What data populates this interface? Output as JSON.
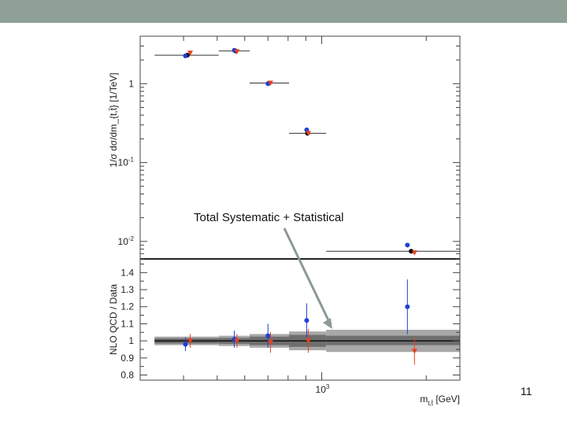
{
  "slide": {
    "page_number": "11",
    "annotation": "Total Systematic + Statistical",
    "topbar_color": "#8fa096"
  },
  "chart_data": [
    {
      "type": "scatter",
      "panel": "upper",
      "ylabel": "1/σ dσ/dm_{t,t̄} [1/TeV]",
      "yscale": "log",
      "ylim": [
        0.006,
        4
      ],
      "xscale": "log",
      "xlim": [
        300,
        2500
      ],
      "y_ticks": [
        {
          "value": 1,
          "label": "1"
        },
        {
          "value": 0.1,
          "label": "10^-1"
        },
        {
          "value": 0.01,
          "label": "10^-2"
        }
      ],
      "bins": [
        [
          330,
          505
        ],
        [
          505,
          620
        ],
        [
          620,
          805
        ],
        [
          805,
          1030
        ],
        [
          1030,
          2500
        ]
      ],
      "series": [
        {
          "color": "#000000",
          "marker": "circle",
          "x": [
            410,
            565,
            705,
            910,
            1810
          ],
          "y": [
            2.3,
            2.6,
            1.02,
            0.235,
            0.0075
          ]
        },
        {
          "color": "#1f3fd6",
          "marker": "circle",
          "x": [
            405,
            560,
            700,
            905,
            1765
          ],
          "y": [
            2.25,
            2.65,
            1.0,
            0.26,
            0.009
          ]
        },
        {
          "color": "#e8401c",
          "marker": "triangle-down",
          "x": [
            418,
            570,
            712,
            915,
            1850
          ],
          "y": [
            2.45,
            2.55,
            1.02,
            0.235,
            0.0072
          ]
        }
      ]
    },
    {
      "type": "scatter",
      "panel": "lower",
      "ylabel": "NLO QCD / Data",
      "xlabel": "m_{t,t̄} [GeV]",
      "xscale": "log",
      "xlim": [
        300,
        2500
      ],
      "ylim": [
        0.77,
        1.48
      ],
      "x_ticks": [
        {
          "value": 1000,
          "label": "10^3"
        }
      ],
      "y_ticks": [
        {
          "value": 0.8,
          "label": "0.8"
        },
        {
          "value": 0.9,
          "label": "0.9"
        },
        {
          "value": 1.0,
          "label": "1"
        },
        {
          "value": 1.1,
          "label": "1.1"
        },
        {
          "value": 1.2,
          "label": "1.2"
        },
        {
          "value": 1.3,
          "label": "1.3"
        },
        {
          "value": 1.4,
          "label": "1.4"
        }
      ],
      "uncertainty_band": {
        "inner_color": "#6e6e6e",
        "outer_color": "#a8a8a8",
        "bins": [
          {
            "x": [
              330,
              505
            ],
            "inner": [
              0.985,
              1.015
            ],
            "outer": [
              0.975,
              1.025
            ]
          },
          {
            "x": [
              505,
              620
            ],
            "inner": [
              0.983,
              1.017
            ],
            "outer": [
              0.97,
              1.03
            ]
          },
          {
            "x": [
              620,
              805
            ],
            "inner": [
              0.975,
              1.025
            ],
            "outer": [
              0.96,
              1.04
            ]
          },
          {
            "x": [
              805,
              1030
            ],
            "inner": [
              0.965,
              1.035
            ],
            "outer": [
              0.945,
              1.055
            ]
          },
          {
            "x": [
              1030,
              2500
            ],
            "inner": [
              0.975,
              1.03
            ],
            "outer": [
              0.935,
              1.065
            ]
          }
        ]
      },
      "series": [
        {
          "color": "#1f3fd6",
          "marker": "circle",
          "x": [
            405,
            560,
            700,
            905,
            1765
          ],
          "y": [
            0.98,
            1.01,
            1.03,
            1.12,
            1.2
          ],
          "yerr": [
            0.04,
            0.05,
            0.07,
            0.1,
            0.16
          ]
        },
        {
          "color": "#e8401c",
          "marker": "triangle-down",
          "x": [
            418,
            570,
            712,
            915,
            1850
          ],
          "y": [
            1.0,
            1.0,
            0.99,
            1.0,
            0.94
          ],
          "yerr": [
            0.04,
            0.04,
            0.06,
            0.07,
            0.08
          ]
        }
      ]
    }
  ]
}
